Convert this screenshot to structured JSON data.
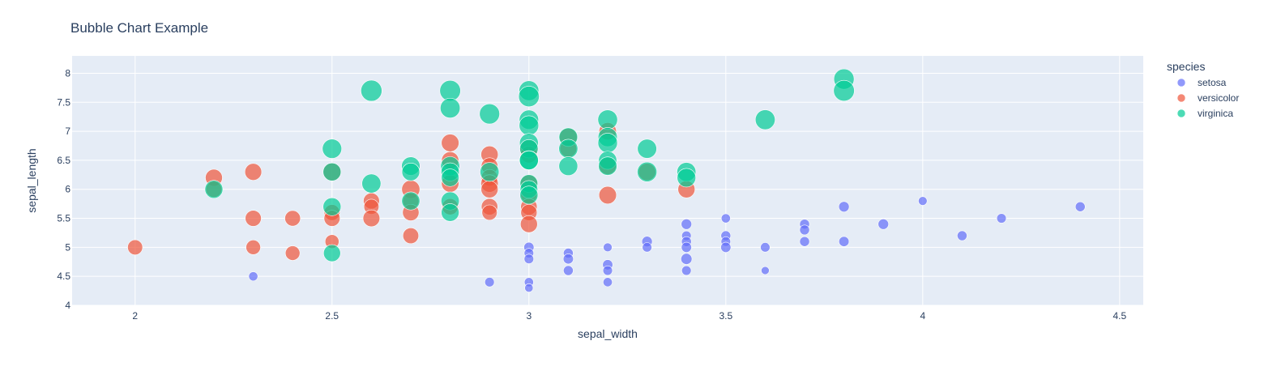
{
  "chart_data": {
    "type": "scatter",
    "title": "Bubble Chart Example",
    "xlabel": "sepal_width",
    "ylabel": "sepal_length",
    "xlim": [
      1.84,
      4.56
    ],
    "ylim": [
      4.0,
      8.3
    ],
    "xticks": [
      2,
      2.5,
      3,
      3.5,
      4,
      4.5
    ],
    "xtick_labels": [
      "2",
      "2.5",
      "3",
      "3.5",
      "4",
      "4.5"
    ],
    "yticks": [
      4,
      4.5,
      5,
      5.5,
      6,
      6.5,
      7,
      7.5,
      8
    ],
    "ytick_labels": [
      "4",
      "4.5",
      "5",
      "5.5",
      "6",
      "6.5",
      "7",
      "7.5",
      "8"
    ],
    "grid": true,
    "legend": {
      "title": "species",
      "placement": "right"
    },
    "size_encoding": "petal_length",
    "series": [
      {
        "name": "setosa",
        "color": "#636efa",
        "points": [
          [
            2.3,
            4.5,
            1.3
          ],
          [
            2.9,
            4.4,
            1.4
          ],
          [
            3.0,
            5.0,
            1.6
          ],
          [
            3.0,
            4.9,
            1.4
          ],
          [
            3.0,
            4.8,
            1.4
          ],
          [
            3.0,
            4.4,
            1.3
          ],
          [
            3.0,
            4.3,
            1.1
          ],
          [
            3.1,
            4.9,
            1.5
          ],
          [
            3.1,
            4.8,
            1.6
          ],
          [
            3.1,
            4.6,
            1.5
          ],
          [
            3.2,
            5.0,
            1.2
          ],
          [
            3.2,
            4.7,
            1.6
          ],
          [
            3.2,
            4.6,
            1.4
          ],
          [
            3.2,
            4.4,
            1.3
          ],
          [
            3.3,
            5.1,
            1.7
          ],
          [
            3.3,
            5.0,
            1.4
          ],
          [
            3.4,
            5.4,
            1.7
          ],
          [
            3.4,
            5.2,
            1.4
          ],
          [
            3.4,
            5.1,
            1.5
          ],
          [
            3.4,
            5.0,
            1.6
          ],
          [
            3.4,
            4.8,
            1.9
          ],
          [
            3.4,
            4.6,
            1.4
          ],
          [
            3.5,
            5.5,
            1.3
          ],
          [
            3.5,
            5.2,
            1.5
          ],
          [
            3.5,
            5.1,
            1.4
          ],
          [
            3.5,
            5.0,
            1.6
          ],
          [
            3.6,
            5.0,
            1.4
          ],
          [
            3.6,
            4.6,
            1.0
          ],
          [
            3.7,
            5.4,
            1.5
          ],
          [
            3.7,
            5.3,
            1.5
          ],
          [
            3.7,
            5.1,
            1.5
          ],
          [
            3.8,
            5.7,
            1.7
          ],
          [
            3.8,
            5.1,
            1.6
          ],
          [
            3.9,
            5.4,
            1.7
          ],
          [
            4.0,
            5.8,
            1.2
          ],
          [
            4.1,
            5.2,
            1.5
          ],
          [
            4.2,
            5.5,
            1.4
          ],
          [
            4.4,
            5.7,
            1.5
          ]
        ]
      },
      {
        "name": "versicolor",
        "color": "#ef553b",
        "points": [
          [
            2.0,
            5.0,
            3.5
          ],
          [
            2.2,
            6.2,
            4.5
          ],
          [
            2.2,
            6.0,
            4.0
          ],
          [
            2.3,
            6.3,
            4.4
          ],
          [
            2.3,
            5.5,
            4.0
          ],
          [
            2.3,
            5.0,
            3.3
          ],
          [
            2.4,
            5.5,
            3.8
          ],
          [
            2.4,
            4.9,
            3.3
          ],
          [
            2.5,
            6.3,
            4.9
          ],
          [
            2.5,
            5.6,
            3.9
          ],
          [
            2.5,
            5.5,
            4.0
          ],
          [
            2.5,
            5.1,
            3.0
          ],
          [
            2.6,
            5.8,
            4.0
          ],
          [
            2.6,
            5.7,
            3.5
          ],
          [
            2.6,
            5.5,
            4.4
          ],
          [
            2.7,
            6.0,
            5.1
          ],
          [
            2.7,
            5.8,
            4.1
          ],
          [
            2.7,
            5.6,
            4.2
          ],
          [
            2.7,
            5.2,
            3.9
          ],
          [
            2.8,
            6.8,
            4.8
          ],
          [
            2.8,
            6.5,
            4.6
          ],
          [
            2.8,
            6.1,
            4.7
          ],
          [
            2.8,
            5.7,
            4.1
          ],
          [
            2.9,
            6.6,
            4.6
          ],
          [
            2.9,
            6.4,
            4.3
          ],
          [
            2.9,
            6.2,
            4.3
          ],
          [
            2.9,
            6.1,
            4.7
          ],
          [
            2.9,
            6.0,
            4.5
          ],
          [
            2.9,
            5.7,
            4.2
          ],
          [
            2.9,
            5.6,
            3.6
          ],
          [
            3.0,
            6.7,
            5.0
          ],
          [
            3.0,
            6.6,
            4.4
          ],
          [
            3.0,
            6.1,
            4.6
          ],
          [
            3.0,
            5.9,
            4.2
          ],
          [
            3.0,
            5.7,
            4.2
          ],
          [
            3.0,
            5.6,
            4.1
          ],
          [
            3.0,
            5.4,
            4.5
          ],
          [
            3.1,
            6.9,
            4.9
          ],
          [
            3.1,
            6.7,
            4.4
          ],
          [
            3.2,
            7.0,
            4.7
          ],
          [
            3.2,
            6.4,
            4.5
          ],
          [
            3.2,
            5.9,
            4.8
          ],
          [
            3.3,
            6.3,
            4.7
          ],
          [
            3.4,
            6.0,
            4.5
          ]
        ]
      },
      {
        "name": "virginica",
        "color": "#00cc96",
        "points": [
          [
            2.2,
            6.0,
            5.0
          ],
          [
            2.5,
            6.7,
            5.8
          ],
          [
            2.5,
            6.3,
            5.0
          ],
          [
            2.5,
            5.7,
            5.0
          ],
          [
            2.5,
            4.9,
            4.5
          ],
          [
            2.6,
            7.7,
            6.9
          ],
          [
            2.6,
            6.1,
            5.6
          ],
          [
            2.7,
            6.4,
            5.3
          ],
          [
            2.7,
            6.3,
            4.9
          ],
          [
            2.7,
            5.8,
            5.1
          ],
          [
            2.8,
            7.7,
            6.7
          ],
          [
            2.8,
            7.4,
            6.1
          ],
          [
            2.8,
            6.4,
            5.6
          ],
          [
            2.8,
            6.3,
            5.1
          ],
          [
            2.8,
            6.2,
            4.8
          ],
          [
            2.8,
            5.8,
            5.1
          ],
          [
            2.8,
            5.6,
            4.9
          ],
          [
            2.9,
            7.3,
            6.3
          ],
          [
            2.9,
            6.3,
            5.6
          ],
          [
            3.0,
            7.7,
            6.1
          ],
          [
            3.0,
            7.6,
            6.6
          ],
          [
            3.0,
            7.2,
            5.8
          ],
          [
            3.0,
            7.1,
            5.9
          ],
          [
            3.0,
            6.8,
            5.5
          ],
          [
            3.0,
            6.7,
            5.2
          ],
          [
            3.0,
            6.5,
            5.8
          ],
          [
            3.0,
            6.5,
            5.5
          ],
          [
            3.0,
            6.1,
            4.9
          ],
          [
            3.0,
            6.0,
            4.8
          ],
          [
            3.0,
            5.9,
            5.1
          ],
          [
            3.1,
            6.9,
            5.4
          ],
          [
            3.1,
            6.7,
            5.6
          ],
          [
            3.1,
            6.4,
            5.5
          ],
          [
            3.2,
            7.2,
            6.0
          ],
          [
            3.2,
            6.9,
            5.7
          ],
          [
            3.2,
            6.8,
            5.9
          ],
          [
            3.2,
            6.5,
            5.1
          ],
          [
            3.2,
            6.4,
            5.3
          ],
          [
            3.3,
            6.7,
            5.7
          ],
          [
            3.3,
            6.3,
            6.0
          ],
          [
            3.4,
            6.3,
            5.6
          ],
          [
            3.4,
            6.2,
            5.4
          ],
          [
            3.6,
            7.2,
            6.1
          ],
          [
            3.8,
            7.9,
            6.4
          ],
          [
            3.8,
            7.7,
            6.7
          ]
        ]
      }
    ]
  }
}
